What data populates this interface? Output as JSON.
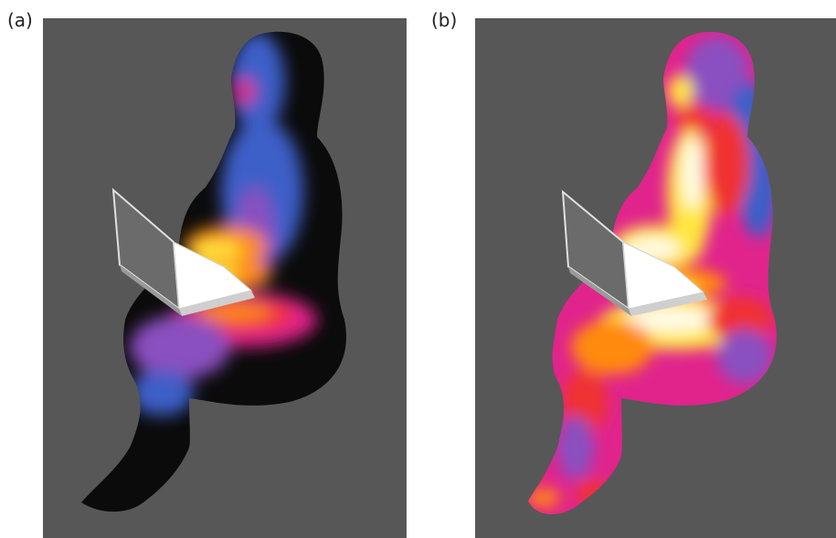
{
  "panels": [
    {
      "label": "(a)"
    },
    {
      "label": "(b)"
    }
  ],
  "colors": {
    "background": "#575757",
    "cold": "#2a2a2a",
    "blue": "#3e5ec8",
    "violet": "#8a4fc0",
    "magenta": "#e0248c",
    "red": "#f03030",
    "orange": "#ff8a10",
    "yellow": "#ffe640",
    "white": "#fffbe6"
  }
}
